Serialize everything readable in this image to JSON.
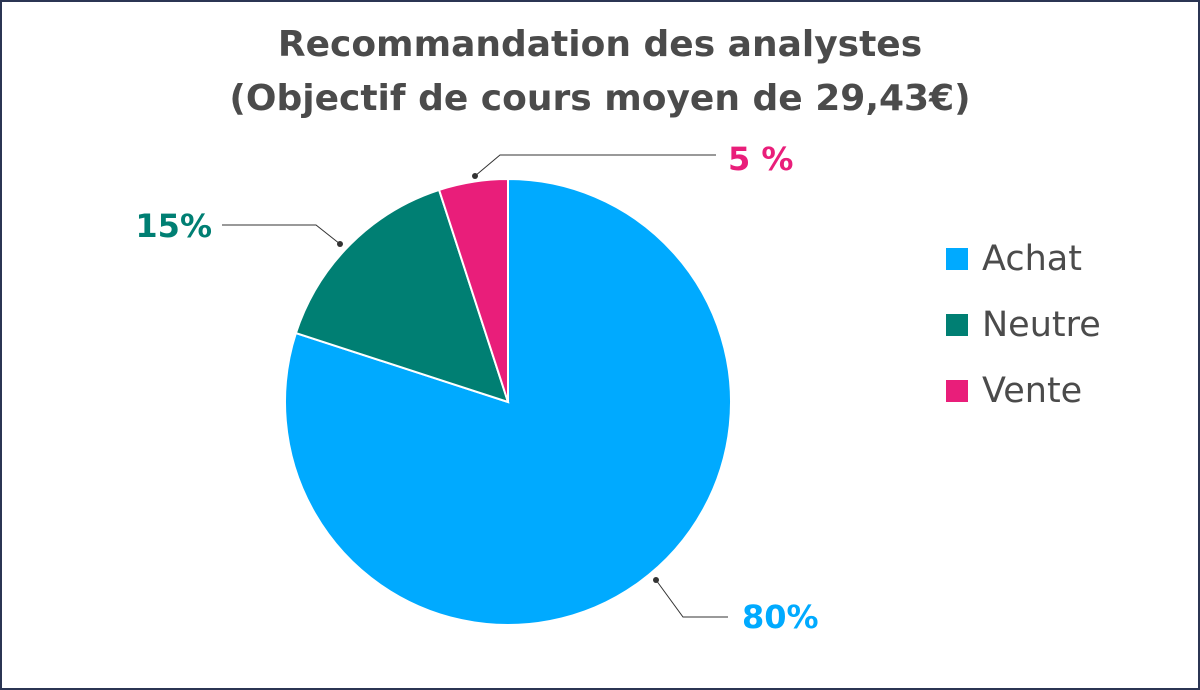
{
  "chart_data": {
    "type": "pie",
    "title": "Recommandation des analystes",
    "subtitle": "(Objectif de cours moyen de 29,43€)",
    "categories": [
      "Achat",
      "Neutre",
      "Vente"
    ],
    "values": [
      80,
      15,
      5
    ],
    "data_labels": [
      "80%",
      "15%",
      "5 %"
    ],
    "colors": [
      "#00aaff",
      "#007f73",
      "#e91e7a"
    ],
    "legend_position": "right"
  },
  "legend": {
    "items": [
      {
        "label": "Achat",
        "color": "#00aaff"
      },
      {
        "label": "Neutre",
        "color": "#007f73"
      },
      {
        "label": "Vente",
        "color": "#e91e7a"
      }
    ]
  },
  "colors": {
    "border": "#2b3553",
    "title_text": "#4b4b4b",
    "leader_line": "#333333"
  }
}
